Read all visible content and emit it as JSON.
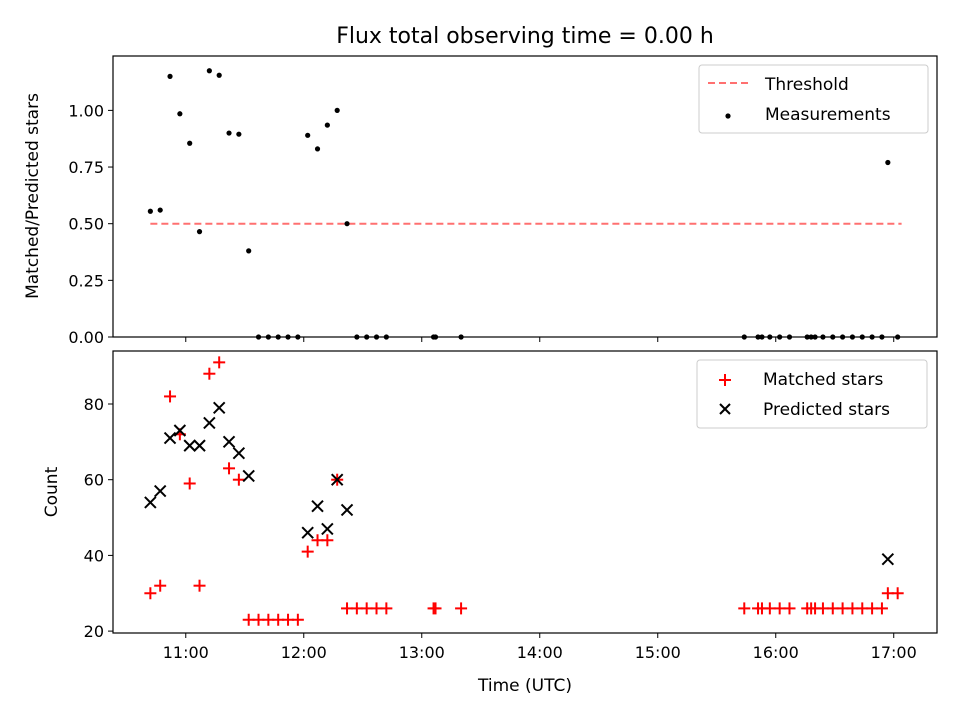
{
  "chart_data": [
    {
      "type": "scatter",
      "title": "Flux total observing time = 0.00 h",
      "ylabel": "Matched/Predicted stars",
      "xlim": [
        "10:23",
        "17:22"
      ],
      "ylim": [
        0,
        1.24
      ],
      "yticks": [
        "0.00",
        "0.25",
        "0.50",
        "0.75",
        "1.00"
      ],
      "legend_position": "top-right",
      "threshold": {
        "name": "Threshold",
        "value": 0.5,
        "x_range": [
          "10:42",
          "17:04"
        ],
        "color": "#ff7070"
      },
      "series": [
        {
          "name": "Measurements",
          "color": "#000000",
          "points": [
            [
              "10:42",
              0.555
            ],
            [
              "10:47",
              0.56
            ],
            [
              "10:52",
              1.15
            ],
            [
              "10:57",
              0.985
            ],
            [
              "11:02",
              0.855
            ],
            [
              "11:07",
              0.465
            ],
            [
              "11:12",
              1.175
            ],
            [
              "11:17",
              1.155
            ],
            [
              "11:22",
              0.9
            ],
            [
              "11:27",
              0.895
            ],
            [
              "11:32",
              0.38
            ],
            [
              "11:37",
              0.0
            ],
            [
              "11:42",
              0.0
            ],
            [
              "11:47",
              0.0
            ],
            [
              "11:52",
              0.0
            ],
            [
              "11:57",
              0.0
            ],
            [
              "12:02",
              0.89
            ],
            [
              "12:07",
              0.83
            ],
            [
              "12:12",
              0.935
            ],
            [
              "12:17",
              1.0
            ],
            [
              "12:22",
              0.5
            ],
            [
              "12:27",
              0.0
            ],
            [
              "12:32",
              0.0
            ],
            [
              "12:37",
              0.0
            ],
            [
              "12:42",
              0.0
            ],
            [
              "13:06",
              0.0
            ],
            [
              "13:07",
              0.0
            ],
            [
              "13:20",
              0.0
            ],
            [
              "15:44",
              0.0
            ],
            [
              "15:51",
              0.0
            ],
            [
              "15:53",
              0.0
            ],
            [
              "15:57",
              0.0
            ],
            [
              "16:02",
              0.0
            ],
            [
              "16:07",
              0.0
            ],
            [
              "16:16",
              0.0
            ],
            [
              "16:18",
              0.0
            ],
            [
              "16:20",
              0.0
            ],
            [
              "16:24",
              0.0
            ],
            [
              "16:29",
              0.0
            ],
            [
              "16:34",
              0.0
            ],
            [
              "16:39",
              0.0
            ],
            [
              "16:44",
              0.0
            ],
            [
              "16:49",
              0.0
            ],
            [
              "16:54",
              0.0
            ],
            [
              "16:57",
              0.77
            ],
            [
              "17:02",
              0.0
            ]
          ]
        }
      ]
    },
    {
      "type": "scatter",
      "xlabel": "Time (UTC)",
      "ylabel": "Count",
      "xlim": [
        "10:23",
        "17:22"
      ],
      "ylim": [
        19.5,
        94
      ],
      "yticks": [
        "20",
        "40",
        "60",
        "80"
      ],
      "xticks": [
        "11:00",
        "12:00",
        "13:00",
        "14:00",
        "15:00",
        "16:00",
        "17:00"
      ],
      "legend_position": "top-right",
      "series": [
        {
          "name": "Matched stars",
          "color": "#ff0000",
          "marker": "plus",
          "points": [
            [
              "10:42",
              30
            ],
            [
              "10:47",
              32
            ],
            [
              "10:52",
              82
            ],
            [
              "10:57",
              72
            ],
            [
              "11:02",
              59
            ],
            [
              "11:07",
              32
            ],
            [
              "11:12",
              88
            ],
            [
              "11:17",
              91
            ],
            [
              "11:22",
              63
            ],
            [
              "11:27",
              60
            ],
            [
              "11:32",
              23
            ],
            [
              "11:37",
              23
            ],
            [
              "11:42",
              23
            ],
            [
              "11:47",
              23
            ],
            [
              "11:52",
              23
            ],
            [
              "11:57",
              23
            ],
            [
              "12:02",
              41
            ],
            [
              "12:07",
              44
            ],
            [
              "12:12",
              44
            ],
            [
              "12:17",
              60
            ],
            [
              "12:22",
              26
            ],
            [
              "12:27",
              26
            ],
            [
              "12:32",
              26
            ],
            [
              "12:37",
              26
            ],
            [
              "12:42",
              26
            ],
            [
              "13:06",
              26
            ],
            [
              "13:07",
              26
            ],
            [
              "13:20",
              26
            ],
            [
              "15:44",
              26
            ],
            [
              "15:51",
              26
            ],
            [
              "15:53",
              26
            ],
            [
              "15:57",
              26
            ],
            [
              "16:02",
              26
            ],
            [
              "16:07",
              26
            ],
            [
              "16:16",
              26
            ],
            [
              "16:18",
              26
            ],
            [
              "16:20",
              26
            ],
            [
              "16:24",
              26
            ],
            [
              "16:29",
              26
            ],
            [
              "16:34",
              26
            ],
            [
              "16:39",
              26
            ],
            [
              "16:44",
              26
            ],
            [
              "16:49",
              26
            ],
            [
              "16:54",
              26
            ],
            [
              "16:57",
              30
            ],
            [
              "17:02",
              30
            ]
          ]
        },
        {
          "name": "Predicted stars",
          "color": "#000000",
          "marker": "x",
          "points": [
            [
              "10:42",
              54
            ],
            [
              "10:47",
              57
            ],
            [
              "10:52",
              71
            ],
            [
              "10:57",
              73
            ],
            [
              "11:02",
              69
            ],
            [
              "11:07",
              69
            ],
            [
              "11:12",
              75
            ],
            [
              "11:17",
              79
            ],
            [
              "11:22",
              70
            ],
            [
              "11:27",
              67
            ],
            [
              "11:32",
              61
            ],
            [
              "12:02",
              46
            ],
            [
              "12:07",
              53
            ],
            [
              "12:12",
              47
            ],
            [
              "12:17",
              60
            ],
            [
              "12:22",
              52
            ],
            [
              "16:57",
              39
            ]
          ]
        }
      ]
    }
  ]
}
